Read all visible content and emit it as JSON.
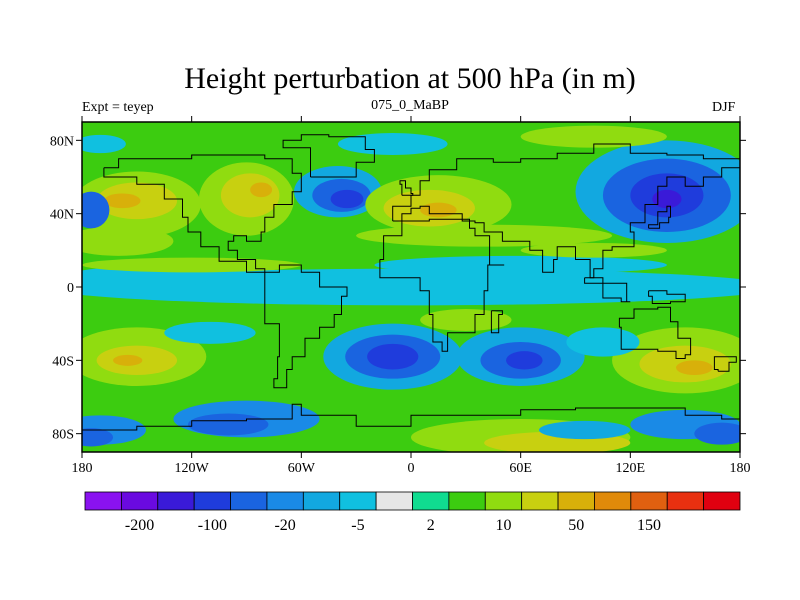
{
  "title": "Height perturbation at 500 hPa (in m)",
  "subtitle_left": "Expt = teyep",
  "subtitle_center": "075_0_MaBP",
  "subtitle_right": "DJF",
  "x_ticks": [
    "180",
    "120W",
    "60W",
    "0",
    "60E",
    "120E",
    "180"
  ],
  "y_ticks": [
    "80N",
    "40N",
    "0",
    "40S",
    "80S"
  ],
  "colorbar": {
    "colors": [
      "#8a12f0",
      "#6a0ae0",
      "#3a1ad8",
      "#1f3cdc",
      "#1a64e0",
      "#1a8ae6",
      "#12a8e0",
      "#10c0e0",
      "#e6e6e6",
      "#10dc90",
      "#3ccc10",
      "#90dc10",
      "#c8d010",
      "#d8b00a",
      "#e08a0a",
      "#e06010",
      "#e83010",
      "#e00010"
    ],
    "labels": [
      "-200",
      "-100",
      "-20",
      "-5",
      "2",
      "10",
      "50",
      "150"
    ]
  },
  "chart_data": {
    "type": "heatmap",
    "title": "Height perturbation at 500 hPa (in m)",
    "variable": "Height perturbation at 500 hPa",
    "units": "m",
    "season": "DJF",
    "experiment": "teyep",
    "case": "075_0_MaBP",
    "x_range": [
      -180,
      180
    ],
    "y_range": [
      -90,
      90
    ],
    "xticks": [
      "180",
      "120W",
      "60W",
      "0",
      "60E",
      "120E",
      "180"
    ],
    "yticks": [
      "80N",
      "40N",
      "0",
      "40S",
      "80S"
    ],
    "colorbar_levels": [
      "-200",
      "-100",
      "-20",
      "-5",
      "2",
      "10",
      "50",
      "150"
    ],
    "features": [
      {
        "name": "low-ne-pacific",
        "lon": 140,
        "lat": 50,
        "value": -100
      },
      {
        "name": "low-n-atlantic",
        "lon": -40,
        "lat": 50,
        "value": -50
      },
      {
        "name": "high-n-atlantic-europe",
        "lon": 15,
        "lat": 42,
        "value": 60
      },
      {
        "name": "high-n-pacific",
        "lon": -160,
        "lat": 45,
        "value": 50
      },
      {
        "name": "high-w-america",
        "lon": -85,
        "lat": 45,
        "value": 40
      },
      {
        "name": "low-s-atlantic",
        "lon": -10,
        "lat": -40,
        "value": -60
      },
      {
        "name": "low-s-indian",
        "lon": 60,
        "lat": -40,
        "value": -60
      },
      {
        "name": "high-s-pacific",
        "lon": -150,
        "lat": -40,
        "value": 50
      },
      {
        "name": "high-s-australia",
        "lon": 150,
        "lat": -45,
        "value": 50
      },
      {
        "name": "low-w-hemisphere-pole-south",
        "lon": -90,
        "lat": -70,
        "value": -20
      }
    ]
  }
}
